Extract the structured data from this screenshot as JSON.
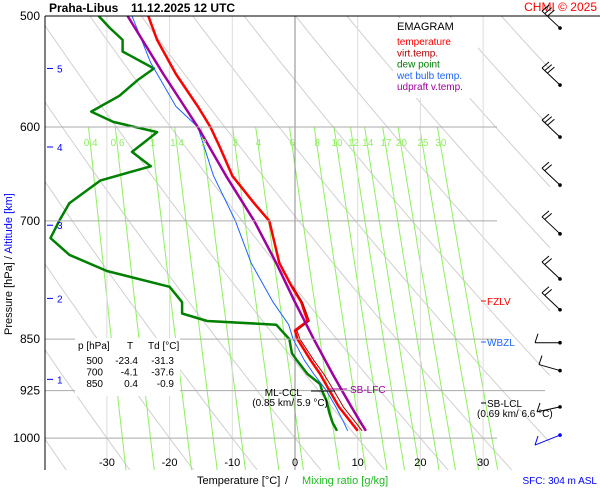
{
  "chart_data": {
    "type": "line",
    "title": "Praha-Libus",
    "datetime": "11.12.2025 12 UTC",
    "copyright": "CHMI © 2025",
    "diagram_label": "EMAGRAM",
    "xlabel": "Temperature [°C]",
    "xlabel_sep": "/",
    "xlabel2": "Mixing ratio [g/kg]",
    "ylabel": "Pressure [hPa]",
    "ylabel_sep": "/",
    "ylabel2": "Altitude [km]",
    "surface_note": "SFC: 304 m ASL",
    "xlim": [
      -40,
      32
    ],
    "ylim_hpa": [
      500,
      1053
    ],
    "y_scale": "log",
    "x_ticks": [
      -30,
      -20,
      -10,
      0,
      10,
      20,
      30
    ],
    "y_ticks": [
      500,
      600,
      700,
      850,
      925,
      1000
    ],
    "altitude_ticks": [
      {
        "km": "1",
        "p": 908
      },
      {
        "km": "2",
        "p": 795
      },
      {
        "km": "3",
        "p": 705
      },
      {
        "km": "4",
        "p": 620
      },
      {
        "km": "5",
        "p": 545
      }
    ],
    "mixing_ratio_labels": [
      "0.4",
      "0.6",
      "1",
      "1.4",
      "2",
      "3",
      "4",
      "6",
      "8",
      "10",
      "12",
      "14",
      "17",
      "20",
      "25",
      "30"
    ],
    "colors": {
      "temperature": "#ff0000",
      "virt_temp": "#b00000",
      "dew_point": "#008000",
      "wet_bulb": "#1e64ff",
      "updraft": "#a000a0",
      "mixing": "#90ee60",
      "grid": "#aaaaaa",
      "adiabat": "#d0d0d0"
    },
    "legend": [
      {
        "label": "temperature",
        "color": "#ff0000"
      },
      {
        "label": "virt.temp.",
        "color": "#b00000"
      },
      {
        "label": "dew point",
        "color": "#008000"
      },
      {
        "label": "wet bulb temp.",
        "color": "#1e64ff"
      },
      {
        "label": "udpraft v.temp.",
        "color": "#a000a0"
      }
    ],
    "series": [
      {
        "name": "temperature",
        "points": [
          [
            500,
            -23.4
          ],
          [
            520,
            -22
          ],
          [
            550,
            -19
          ],
          [
            580,
            -15.5
          ],
          [
            600,
            -13.5
          ],
          [
            620,
            -12
          ],
          [
            650,
            -10
          ],
          [
            680,
            -6.5
          ],
          [
            700,
            -4.1
          ],
          [
            750,
            -2.5
          ],
          [
            780,
            -0.5
          ],
          [
            800,
            1
          ],
          [
            825,
            2
          ],
          [
            838,
            0
          ],
          [
            850,
            0.4
          ],
          [
            880,
            2.5
          ],
          [
            900,
            4
          ],
          [
            925,
            5.5
          ],
          [
            950,
            7
          ],
          [
            975,
            9
          ],
          [
            988,
            10
          ]
        ]
      },
      {
        "name": "virt.temp.",
        "points": [
          [
            780,
            -0.3
          ],
          [
            800,
            1.2
          ],
          [
            825,
            2.3
          ],
          [
            838,
            0.3
          ],
          [
            850,
            0.8
          ],
          [
            880,
            3
          ],
          [
            900,
            4.6
          ],
          [
            925,
            6.2
          ],
          [
            950,
            7.7
          ],
          [
            975,
            9.7
          ],
          [
            988,
            10.7
          ]
        ]
      },
      {
        "name": "dew point",
        "points": [
          [
            500,
            -31.3
          ],
          [
            510,
            -29.5
          ],
          [
            520,
            -27.5
          ],
          [
            530,
            -27.5
          ],
          [
            545,
            -22.5
          ],
          [
            555,
            -25
          ],
          [
            570,
            -28
          ],
          [
            585,
            -32.5
          ],
          [
            595,
            -29
          ],
          [
            605,
            -22
          ],
          [
            615,
            -24
          ],
          [
            625,
            -26
          ],
          [
            640,
            -23
          ],
          [
            655,
            -31
          ],
          [
            680,
            -36
          ],
          [
            700,
            -37.6
          ],
          [
            720,
            -39
          ],
          [
            740,
            -36
          ],
          [
            760,
            -30
          ],
          [
            780,
            -20
          ],
          [
            800,
            -18
          ],
          [
            815,
            -18
          ],
          [
            825,
            -14
          ],
          [
            830,
            -3
          ],
          [
            850,
            -0.9
          ],
          [
            870,
            -0.5
          ],
          [
            880,
            0.3
          ],
          [
            900,
            2
          ],
          [
            915,
            4
          ],
          [
            925,
            4.3
          ],
          [
            940,
            5
          ],
          [
            960,
            5.5
          ],
          [
            975,
            6
          ],
          [
            988,
            6.7
          ]
        ]
      },
      {
        "name": "wet bulb temp.",
        "points": [
          [
            500,
            -26
          ],
          [
            540,
            -23
          ],
          [
            580,
            -19
          ],
          [
            600,
            -15.5
          ],
          [
            650,
            -13
          ],
          [
            700,
            -9.5
          ],
          [
            750,
            -7
          ],
          [
            800,
            -3.5
          ],
          [
            830,
            -1
          ],
          [
            850,
            -0.3
          ],
          [
            880,
            1.5
          ],
          [
            900,
            3
          ],
          [
            925,
            5
          ],
          [
            950,
            6.5
          ],
          [
            975,
            7.8
          ],
          [
            988,
            8.4
          ]
        ]
      },
      {
        "name": "udpraft v.temp.",
        "points": [
          [
            500,
            -26.7
          ],
          [
            550,
            -21
          ],
          [
            600,
            -15.5
          ],
          [
            650,
            -11
          ],
          [
            700,
            -6.5
          ],
          [
            750,
            -3
          ],
          [
            800,
            0
          ],
          [
            850,
            3
          ],
          [
            900,
            6
          ],
          [
            925,
            7.5
          ],
          [
            950,
            9
          ],
          [
            975,
            10.5
          ],
          [
            988,
            11.3
          ]
        ]
      }
    ],
    "levels": [
      {
        "label": "FZLV",
        "p": 795,
        "color": "#ff0000"
      },
      {
        "label": "WBZL",
        "p": 852,
        "color": "#1e64ff"
      },
      {
        "label": "SB-LFC",
        "p": 922,
        "color": "#a000a0"
      },
      {
        "label": "ML-CCL",
        "info": "(0.85 km/ 5.9 °C)",
        "color": "#000000"
      },
      {
        "label": "SB-LCL",
        "info": "(0.69 km/ 6.6 °C)",
        "color": "#000000"
      }
    ],
    "table": {
      "headers": [
        "p [hPa]",
        "T",
        "Td [°C]"
      ],
      "rows": [
        [
          "500",
          "-23.4",
          "-31.3"
        ],
        [
          "700",
          "-4.1",
          "-37.6"
        ],
        [
          "850",
          "0.4",
          "-0.9"
        ]
      ]
    },
    "wind_barbs_hpa": [
      510,
      560,
      610,
      660,
      715,
      770,
      810,
      855,
      895,
      950,
      995
    ]
  }
}
